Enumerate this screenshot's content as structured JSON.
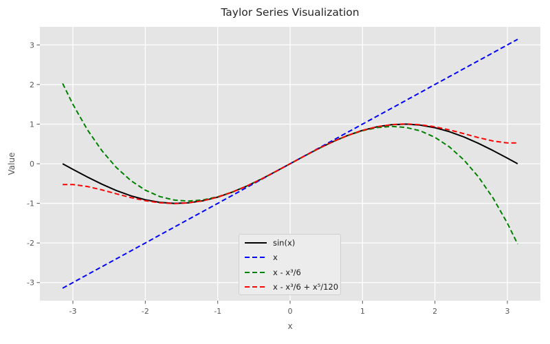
{
  "chart_data": {
    "type": "line",
    "title": "Taylor Series Visualization",
    "xlabel": "x",
    "ylabel": "Value",
    "xlim": [
      -3.456,
      3.456
    ],
    "ylim": [
      -3.456,
      3.456
    ],
    "xticks": [
      -3,
      -2,
      -1,
      0,
      1,
      2,
      3
    ],
    "yticks": [
      -3,
      -2,
      -1,
      0,
      1,
      2,
      3
    ],
    "grid": true,
    "legend_position": "lower-center",
    "colors": {
      "figure_bg": "#ffffff",
      "plot_bg": "#e5e5e5",
      "grid": "#ffffff",
      "tick": "#555555",
      "title_text": "#262626",
      "legend_bg": "#ececec",
      "legend_border": "#cfcfcf"
    },
    "x": [
      -3.1416,
      -3,
      -2.8,
      -2.6,
      -2.4,
      -2.2,
      -2,
      -1.8,
      -1.6,
      -1.4,
      -1.2,
      -1,
      -0.8,
      -0.6,
      -0.4,
      -0.2,
      0,
      0.2,
      0.4,
      0.6,
      0.8,
      1,
      1.2,
      1.4,
      1.6,
      1.8,
      2,
      2.2,
      2.4,
      2.6,
      2.8,
      3,
      3.1416
    ],
    "series": [
      {
        "name": "sin(x)",
        "color": "#000000",
        "dash": "solid",
        "values": [
          0,
          -0.1411,
          -0.335,
          -0.5155,
          -0.6755,
          -0.8085,
          -0.9093,
          -0.9738,
          -0.9996,
          -0.9854,
          -0.932,
          -0.8415,
          -0.7174,
          -0.5646,
          -0.3894,
          -0.1987,
          0,
          0.1987,
          0.3894,
          0.5646,
          0.7174,
          0.8415,
          0.932,
          0.9854,
          0.9996,
          0.9738,
          0.9093,
          0.8085,
          0.6755,
          0.5155,
          0.335,
          0.1411,
          0
        ]
      },
      {
        "name": "x",
        "color": "#0000ff",
        "dash": "dashed",
        "values": [
          -3.1416,
          -3,
          -2.8,
          -2.6,
          -2.4,
          -2.2,
          -2,
          -1.8,
          -1.6,
          -1.4,
          -1.2,
          -1,
          -0.8,
          -0.6,
          -0.4,
          -0.2,
          0,
          0.2,
          0.4,
          0.6,
          0.8,
          1,
          1.2,
          1.4,
          1.6,
          1.8,
          2,
          2.2,
          2.4,
          2.6,
          2.8,
          3,
          3.1416
        ]
      },
      {
        "name": "x - x³/6",
        "color": "#008000",
        "dash": "dashed",
        "values": [
          2.0261,
          1.5,
          0.8587,
          0.3293,
          -0.096,
          -0.4253,
          -0.6667,
          -0.828,
          -0.9173,
          -0.9427,
          -0.912,
          -0.8333,
          -0.7147,
          -0.564,
          -0.3893,
          -0.1987,
          0,
          0.1987,
          0.3893,
          0.564,
          0.7147,
          0.8333,
          0.912,
          0.9427,
          0.9173,
          0.828,
          0.6667,
          0.4253,
          0.096,
          -0.3293,
          -0.8587,
          -1.5,
          -2.0261
        ]
      },
      {
        "name": "x - x³/6 + x⁵/120",
        "color": "#ff0000",
        "dash": "dashed",
        "values": [
          -0.5241,
          -0.525,
          -0.5755,
          -0.6608,
          -0.7596,
          -0.8548,
          -0.9333,
          -0.9855,
          -1.0047,
          -0.9875,
          -0.9327,
          -0.8417,
          -0.7174,
          -0.5646,
          -0.3894,
          -0.1987,
          0,
          0.1987,
          0.3894,
          0.5646,
          0.7174,
          0.8417,
          0.9327,
          0.9875,
          1.0047,
          0.9855,
          0.9333,
          0.8548,
          0.7596,
          0.6608,
          0.5755,
          0.525,
          0.5241
        ]
      }
    ]
  }
}
